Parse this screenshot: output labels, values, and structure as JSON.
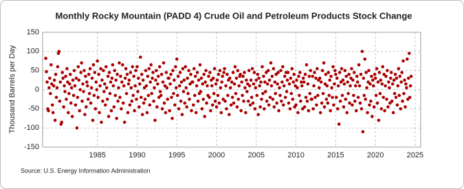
{
  "chart_data": {
    "type": "scatter",
    "title": "Monthly Rocky Mountain (PADD 4) Crude Oil and Petroleum Products Stock Change",
    "y_label": "Thousand Barrels per Day",
    "source": "Source: U.S. Energy Information Administration",
    "color": "#a80000",
    "grid": true,
    "xlim": [
      1978.1,
      2025.7
    ],
    "ylim": [
      -150,
      150
    ],
    "xticks": [
      1985,
      1990,
      1995,
      2000,
      2005,
      2010,
      2015,
      2020,
      2025
    ],
    "yticks": [
      -150,
      -100,
      -50,
      0,
      50,
      100,
      150
    ],
    "start": 1978.5,
    "x": [],
    "values": [
      82,
      47,
      20,
      -50,
      -55,
      5,
      30,
      -10,
      65,
      15,
      -40,
      -60,
      10,
      25,
      -80,
      40,
      -20,
      5,
      60,
      95,
      100,
      -30,
      20,
      -90,
      -85,
      45,
      30,
      -45,
      10,
      -5,
      35,
      -25,
      55,
      20,
      -60,
      -10,
      15,
      40,
      -35,
      5,
      -70,
      25,
      -15,
      50,
      10,
      -40,
      30,
      -100,
      -20,
      60,
      25,
      -55,
      0,
      45,
      70,
      -30,
      15,
      -5,
      50,
      -65,
      35,
      -45,
      20,
      10,
      -25,
      40,
      -10,
      55,
      -35,
      5,
      30,
      -80,
      65,
      -15,
      45,
      -50,
      20,
      0,
      75,
      -20,
      40,
      -60,
      10,
      55,
      -85,
      25,
      -30,
      50,
      -5,
      15,
      -40,
      60,
      5,
      -25,
      35,
      -70,
      45,
      -10,
      20,
      -55,
      30,
      65,
      10,
      -45,
      50,
      -15,
      25,
      -75,
      40,
      -30,
      5,
      70,
      -20,
      35,
      -50,
      20,
      65,
      -35,
      10,
      -85,
      30,
      55,
      -10,
      40,
      -60,
      15,
      25,
      -40,
      45,
      5,
      -30,
      60,
      -15,
      35,
      -55,
      10,
      50,
      -25,
      60,
      -5,
      30,
      -45,
      15,
      85,
      -20,
      40,
      -65,
      25,
      -35,
      5,
      -25,
      50,
      10,
      -60,
      35,
      -15,
      55,
      -40,
      20,
      65,
      -10,
      30,
      45,
      -30,
      5,
      -80,
      25,
      50,
      -45,
      15,
      35,
      -20,
      60,
      -5,
      -15,
      40,
      -50,
      20,
      70,
      -35,
      10,
      -60,
      45,
      5,
      -25,
      30,
      30,
      -55,
      15,
      40,
      -20,
      -75,
      50,
      -10,
      25,
      -40,
      60,
      5,
      80,
      -15,
      35,
      -50,
      10,
      45,
      -30,
      20,
      -65,
      55,
      -5,
      25,
      -35,
      60,
      5,
      -45,
      30,
      -10,
      50,
      -25,
      15,
      40,
      -55,
      20,
      20,
      -40,
      55,
      -15,
      35,
      -60,
      10,
      45,
      -30,
      25,
      -10,
      65,
      -5,
      30,
      -50,
      15,
      -25,
      40,
      -70,
      20,
      50,
      -35,
      10,
      -15,
      35,
      -20,
      45,
      -55,
      25,
      10,
      -40,
      30,
      -10,
      55,
      -30,
      15,
      -45,
      25,
      -15,
      40,
      -35,
      50,
      5,
      -60,
      20,
      35,
      -25,
      45,
      55,
      -30,
      10,
      -50,
      40,
      -15,
      25,
      -65,
      30,
      5,
      -40,
      20,
      -20,
      45,
      -35,
      15,
      60,
      -10,
      30,
      -45,
      50,
      -25,
      10,
      35,
      40,
      -55,
      20,
      -15,
      35,
      -30,
      45,
      5,
      -60,
      25,
      -5,
      15,
      -30,
      50,
      10,
      -40,
      25,
      -20,
      55,
      -35,
      15,
      45,
      -50,
      5,
      25,
      -15,
      40,
      -65,
      30,
      10,
      -45,
      20,
      -25,
      60,
      -10,
      35,
      -50,
      20,
      -5,
      45,
      -30,
      15,
      50,
      -40,
      25,
      -20,
      70,
      10,
      35,
      -25,
      55,
      -45,
      20,
      -10,
      40,
      -35,
      15,
      45,
      -55,
      5,
      -15,
      50,
      -30,
      20,
      60,
      -40,
      10,
      35,
      -20,
      45,
      -5,
      25,
      45,
      -35,
      15,
      -50,
      30,
      -10,
      55,
      -25,
      20,
      40,
      -45,
      10,
      -40,
      25,
      5,
      -60,
      35,
      -15,
      45,
      -30,
      20,
      10,
      -50,
      30,
      20,
      -45,
      40,
      -20,
      65,
      -30,
      15,
      -55,
      35,
      -10,
      50,
      -25,
      -25,
      35,
      -50,
      10,
      45,
      -20,
      30,
      -40,
      55,
      -15,
      25,
      5,
      30,
      -60,
      20,
      -35,
      50,
      -10,
      70,
      -45,
      15,
      40,
      -25,
      10,
      -35,
      45,
      -15,
      25,
      -55,
      35,
      5,
      -20,
      60,
      -40,
      15,
      50,
      40,
      -20,
      30,
      -50,
      10,
      -90,
      45,
      -30,
      20,
      55,
      -15,
      25,
      -45,
      15,
      50,
      -25,
      35,
      -60,
      20,
      -10,
      40,
      -35,
      10,
      30,
      55,
      -40,
      25,
      -15,
      45,
      -30,
      10,
      -55,
      35,
      20,
      -20,
      65,
      10,
      -35,
      40,
      -50,
      100,
      -110,
      30,
      -15,
      80,
      -25,
      45,
      5,
      -60,
      20,
      50,
      -40,
      15,
      -30,
      35,
      -70,
      25,
      10,
      -45,
      40,
      30,
      -15,
      55,
      -35,
      20,
      -80,
      45,
      -10,
      25,
      -50,
      15,
      60,
      -20,
      40,
      -55,
      10,
      35,
      -25,
      50,
      -45,
      20,
      5,
      -35,
      30,
      45,
      -30,
      15,
      -60,
      25,
      -10,
      40,
      -20,
      30,
      -40,
      10,
      55,
      -15,
      35,
      -50,
      20,
      45,
      -30,
      75,
      -10,
      25,
      -45,
      15,
      5,
      80,
      -25,
      30,
      95,
      -20,
      10,
      35
    ]
  }
}
